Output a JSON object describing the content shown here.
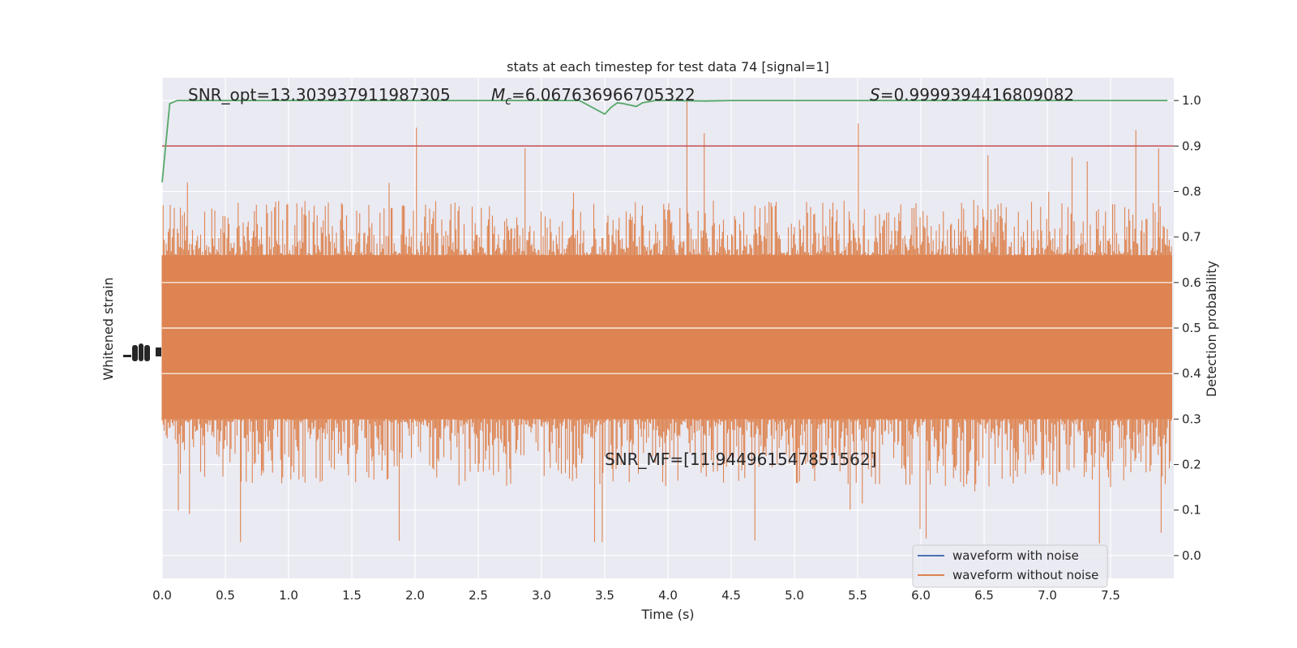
{
  "chart_data": {
    "type": "line",
    "title": "stats at each timestep for test data 74 [signal=1]",
    "xlabel": "Time (s)",
    "ylabel_left": "Whitened strain",
    "ylabel_right": "Detection probability",
    "xlim": [
      0.0,
      8.0
    ],
    "ylim_right": [
      -0.05,
      1.05
    ],
    "x_ticks": [
      "0.0",
      "0.5",
      "1.0",
      "1.5",
      "2.0",
      "2.5",
      "3.0",
      "3.5",
      "4.0",
      "4.5",
      "5.0",
      "5.5",
      "6.0",
      "6.5",
      "7.0",
      "7.5"
    ],
    "y_ticks_right": [
      "0.0",
      "0.1",
      "0.2",
      "0.3",
      "0.4",
      "0.5",
      "0.6",
      "0.7",
      "0.8",
      "0.9",
      "1.0"
    ],
    "grid": true,
    "legend_position": "lower-right",
    "annotations": {
      "snr_opt": "SNR_opt=13.303937911987305",
      "mc_symbol": "M",
      "mc_subscript": "c",
      "mc_value": "=6.067636966705322",
      "s_symbol": "S",
      "s_value": "=0.9999394416809082",
      "snr_mf": "SNR_MF=[11.944961547851562]"
    },
    "threshold": {
      "value": 0.9,
      "color": "#c44e52"
    },
    "series": [
      {
        "name": "waveform with noise",
        "color": "#4c72b0",
        "kind": "strain"
      },
      {
        "name": "waveform without noise",
        "color": "#dd8452",
        "kind": "strain"
      },
      {
        "color": "#55a868",
        "kind": "probability",
        "x": [
          0.0,
          0.06,
          0.12,
          0.25,
          0.5,
          1.0,
          1.5,
          2.0,
          2.5,
          3.0,
          3.3,
          3.4,
          3.5,
          3.55,
          3.6,
          3.65,
          3.7,
          3.75,
          3.8,
          3.9,
          4.0,
          4.3,
          4.5,
          5.0,
          6.0,
          7.0,
          7.95
        ],
        "values": [
          0.82,
          0.993,
          1.0,
          1.0,
          1.0,
          1.0,
          1.0,
          1.0,
          1.0,
          1.0,
          1.0,
          0.985,
          0.97,
          0.985,
          0.995,
          0.993,
          0.99,
          0.987,
          0.995,
          1.0,
          1.0,
          0.999,
          1.0,
          1.0,
          1.0,
          1.0,
          1.0
        ]
      }
    ],
    "strain_noise_envelope": {
      "core_low": 0.3,
      "core_high": 0.66,
      "typical_low": 0.15,
      "typical_high": 0.78,
      "peak_low": 0.025,
      "peak_high": 0.995
    }
  },
  "colors": {
    "plot_background": "#eaeaf2",
    "grid": "#ffffff"
  }
}
